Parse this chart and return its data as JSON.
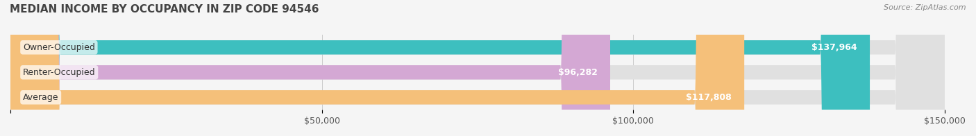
{
  "title": "MEDIAN INCOME BY OCCUPANCY IN ZIP CODE 94546",
  "source": "Source: ZipAtlas.com",
  "categories": [
    "Owner-Occupied",
    "Renter-Occupied",
    "Average"
  ],
  "values": [
    137964,
    96282,
    117808
  ],
  "bar_colors": [
    "#3dbfbf",
    "#d4a8d4",
    "#f5c07a"
  ],
  "bar_bg_color": "#e8e8e8",
  "background_color": "#f5f5f5",
  "label_colors": [
    "#ffffff",
    "#888888",
    "#ffffff"
  ],
  "value_labels": [
    "$137,964",
    "$96,282",
    "$117,808"
  ],
  "xlim": [
    0,
    150000
  ],
  "xticks": [
    0,
    50000,
    100000,
    150000
  ],
  "xtick_labels": [
    "",
    "$50,000",
    "$100,000",
    "$150,000"
  ],
  "title_fontsize": 11,
  "tick_fontsize": 9,
  "value_fontsize": 9,
  "cat_fontsize": 9
}
